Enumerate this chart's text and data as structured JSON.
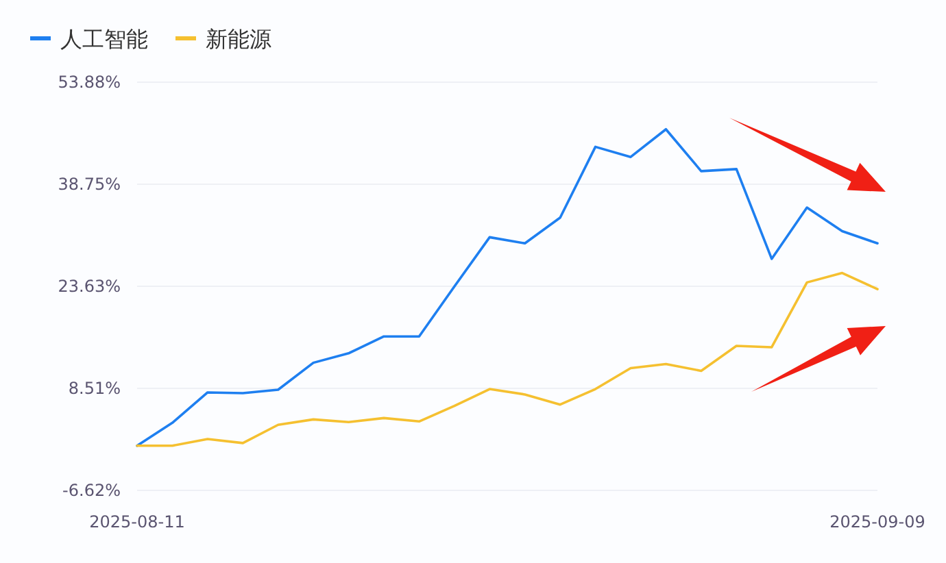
{
  "chart_data": {
    "type": "line",
    "categories": [
      "2025-08-11",
      null,
      null,
      null,
      null,
      null,
      null,
      null,
      null,
      null,
      null,
      null,
      null,
      null,
      null,
      null,
      null,
      null,
      null,
      null,
      null,
      "2025-09-09"
    ],
    "series": [
      {
        "name": "人工智能",
        "color": "#1e7ff0",
        "values": [
          0,
          3.4,
          7.9,
          7.8,
          8.3,
          12.3,
          13.7,
          16.2,
          16.2,
          23.6,
          30.9,
          30.0,
          33.8,
          44.3,
          42.8,
          46.9,
          40.7,
          41.0,
          27.7,
          35.3,
          31.8,
          30.0
        ]
      },
      {
        "name": "新能源",
        "color": "#f5c030",
        "values": [
          0,
          0,
          1.0,
          0.4,
          3.1,
          3.9,
          3.5,
          4.1,
          3.6,
          5.9,
          8.4,
          7.6,
          6.1,
          8.4,
          11.5,
          12.1,
          11.1,
          14.8,
          14.6,
          24.2,
          25.6,
          23.2
        ]
      }
    ],
    "ylim": [
      -6.62,
      53.88
    ],
    "yticks": [
      {
        "value": -6.62,
        "label": "-6.62%"
      },
      {
        "value": 8.51,
        "label": "8.51%"
      },
      {
        "value": 23.63,
        "label": "23.63%"
      },
      {
        "value": 38.75,
        "label": "38.75%"
      },
      {
        "value": 53.88,
        "label": "53.88%"
      }
    ],
    "grid": "y",
    "legend": "top left",
    "marker": "none",
    "line_style": "solid"
  }
}
